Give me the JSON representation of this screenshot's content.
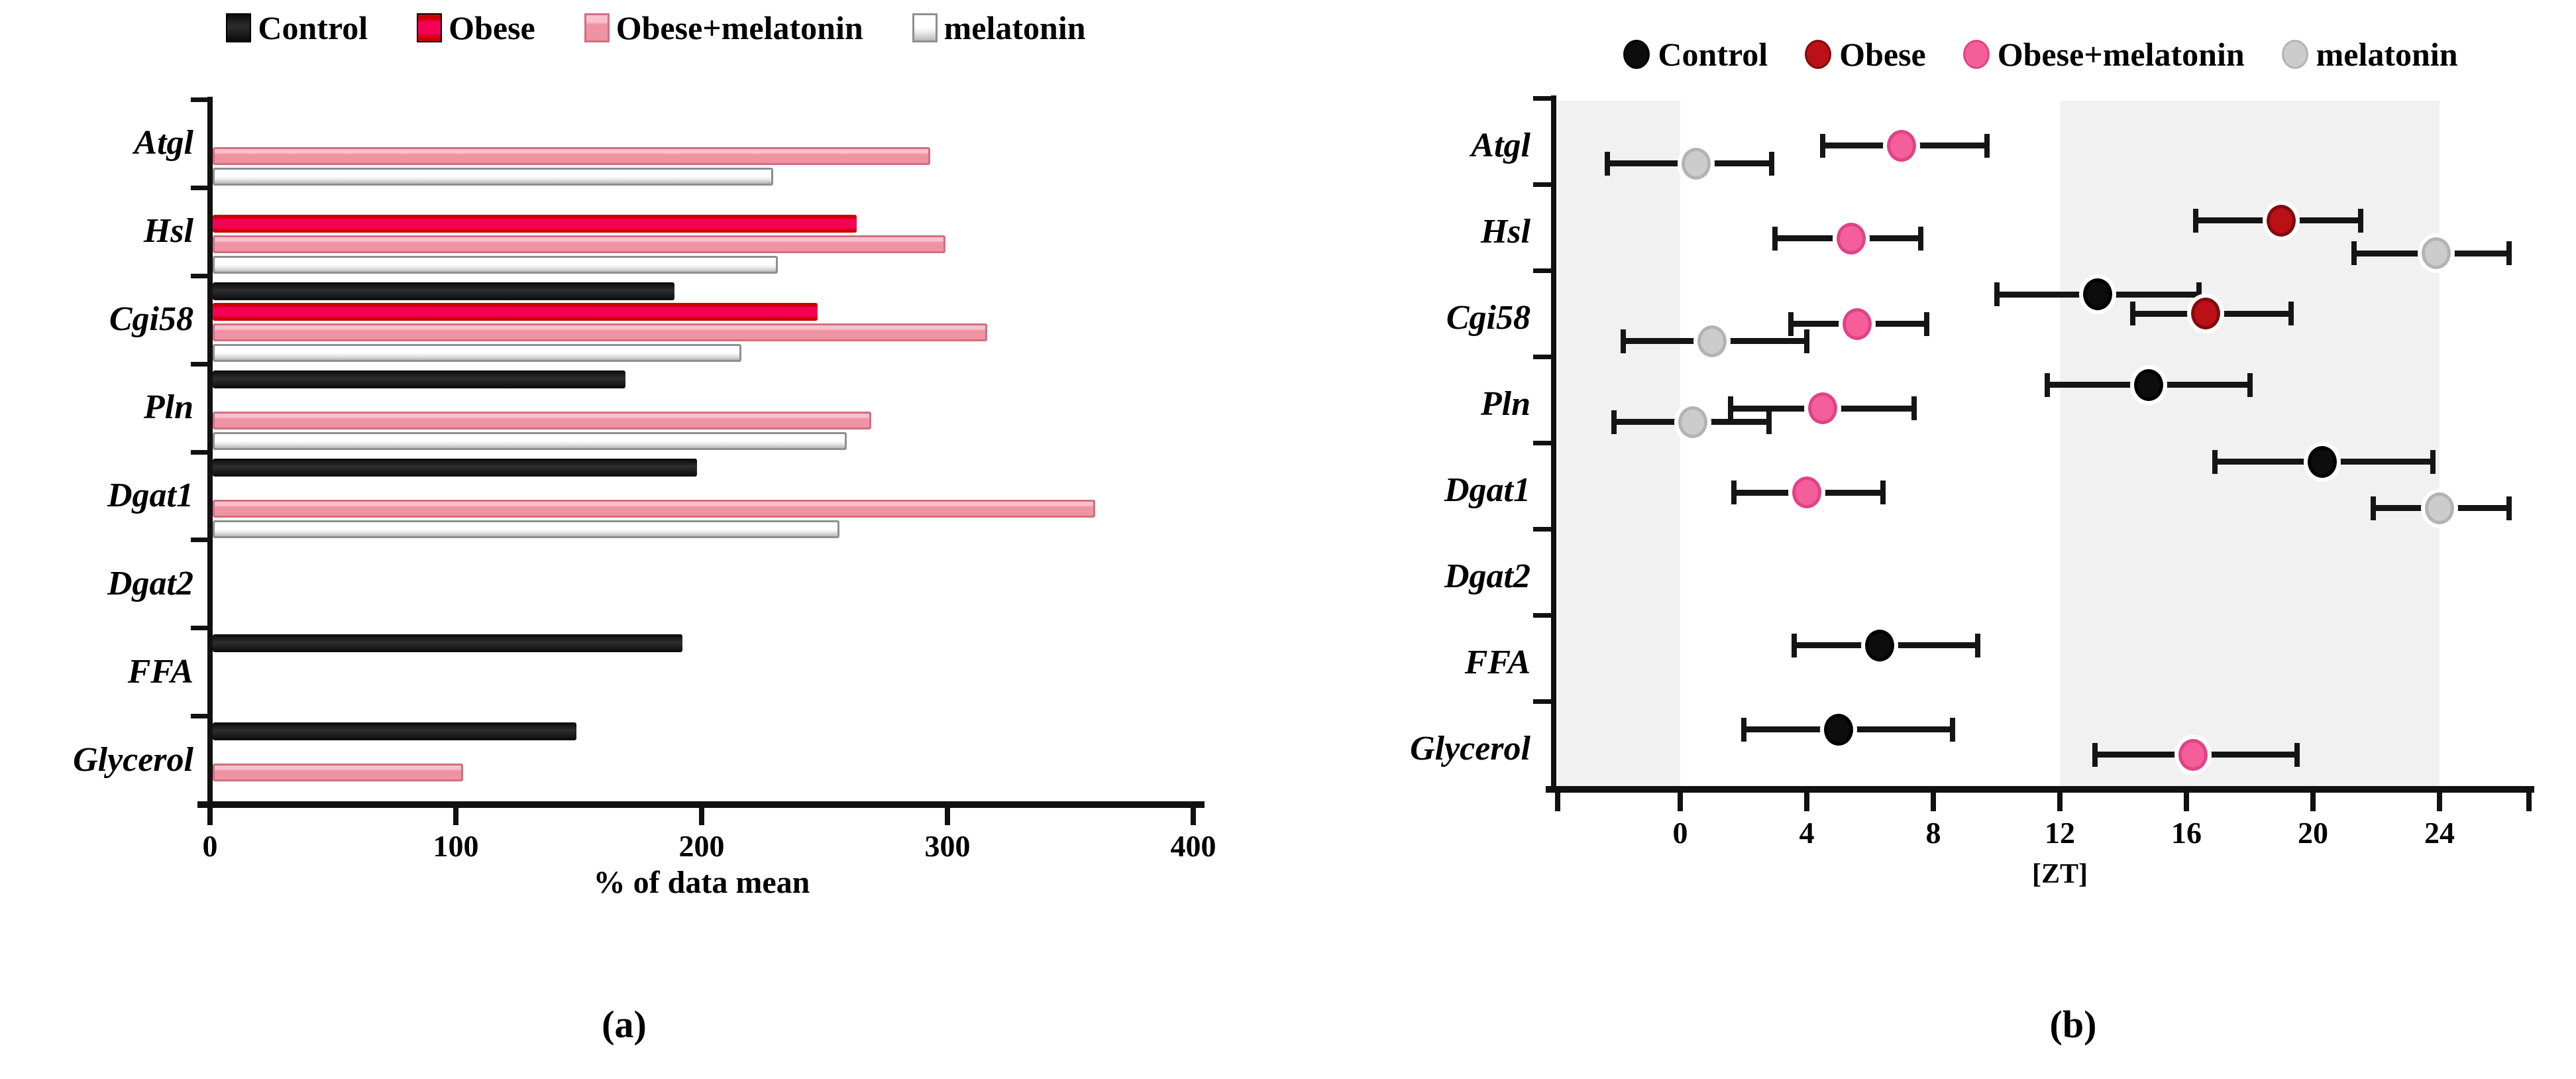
{
  "figure": {
    "panel_a_label": "(a)",
    "panel_b_label": "(b)"
  },
  "colors": {
    "axis": "#111111",
    "control_bar": "#0a0a0a",
    "control_bar_mid": "#2e2e2e",
    "obese_bar": "#f50057",
    "obese_bar_edge": "#cf0000",
    "obese_mel_bar": "#ef93a3",
    "obese_mel_bar_hi": "#f8c0ca",
    "obese_mel_bar_edge": "#cf7082",
    "melatonin_bar": "#ffffff",
    "melatonin_bar_lo": "#e9e9e9",
    "melatonin_bar_edge": "#8f8f8f",
    "dot_control": "#0d0d0d",
    "dot_control_rim": "#000000",
    "dot_obese": "#bb1015",
    "dot_obese_rim": "#820b0e",
    "dot_obese_mel": "#f55f99",
    "dot_obese_mel_rim": "#e0428a",
    "dot_melatonin": "#cccccc",
    "dot_melatonin_rim": "#b3b3b3",
    "shade_band": "#f1f1f1",
    "error_bar": "#151515",
    "text": "#000000"
  },
  "chart_data": [
    {
      "id": "a",
      "type": "bar",
      "orientation": "horizontal",
      "xlabel": "% of data mean",
      "x_ticks": [
        0,
        100,
        200,
        300,
        400
      ],
      "xlim": [
        0,
        400
      ],
      "grid": false,
      "legend_position": "top",
      "categories": [
        "Atgl",
        "Hsl",
        "Cgi58",
        "Pln",
        "Dgat1",
        "Dgat2",
        "FFA",
        "Glycerol"
      ],
      "series": [
        {
          "name": "Control",
          "color_key": "control",
          "values": [
            0,
            0,
            188,
            168,
            197,
            0,
            191,
            148
          ]
        },
        {
          "name": "Obese",
          "color_key": "obese",
          "values": [
            0,
            262,
            246,
            0,
            0,
            0,
            0,
            0
          ]
        },
        {
          "name": "Obese+melatonin",
          "color_key": "obese_melatonin",
          "values": [
            292,
            298,
            315,
            268,
            359,
            0,
            0,
            102
          ]
        },
        {
          "name": "melatonin",
          "color_key": "melatonin",
          "values": [
            228,
            230,
            215,
            258,
            255,
            0,
            0,
            0
          ]
        }
      ]
    },
    {
      "id": "b",
      "type": "scatter",
      "xlabel": "[ZT]",
      "x_ticks": [
        0,
        4,
        8,
        12,
        16,
        20,
        24
      ],
      "xlim": [
        -4,
        27
      ],
      "shaded_bands": [
        [
          -3.85,
          0
        ],
        [
          12,
          24
        ]
      ],
      "grid": false,
      "legend_position": "top",
      "categories": [
        "Atgl",
        "Hsl",
        "Cgi58",
        "Pln",
        "Dgat1",
        "Dgat2",
        "FFA",
        "Glycerol"
      ],
      "groups": [
        "Control",
        "Obese",
        "Obese+melatonin",
        "melatonin"
      ],
      "points": [
        {
          "gene": "Atgl",
          "group": "Obese+melatonin",
          "zt": 7.0,
          "lo": 4.5,
          "hi": 9.7,
          "row_frac": 0.55
        },
        {
          "gene": "Atgl",
          "group": "melatonin",
          "zt": 0.5,
          "lo": -2.3,
          "hi": 2.9,
          "row_frac": 0.76
        },
        {
          "gene": "Hsl",
          "group": "Obese",
          "zt": 19.0,
          "lo": 16.3,
          "hi": 21.5,
          "row_frac": 0.42
        },
        {
          "gene": "Hsl",
          "group": "Obese+melatonin",
          "zt": 5.4,
          "lo": 3.0,
          "hi": 7.6,
          "row_frac": 0.63
        },
        {
          "gene": "Hsl",
          "group": "melatonin",
          "zt": 23.9,
          "lo": 21.3,
          "hi": 26.2,
          "row_frac": 0.8
        },
        {
          "gene": "Cgi58",
          "group": "Control",
          "zt": 13.2,
          "lo": 10.0,
          "hi": 16.4,
          "row_frac": 0.28
        },
        {
          "gene": "Cgi58",
          "group": "Obese",
          "zt": 16.6,
          "lo": 14.3,
          "hi": 19.3,
          "row_frac": 0.5
        },
        {
          "gene": "Cgi58",
          "group": "Obese+melatonin",
          "zt": 5.6,
          "lo": 3.5,
          "hi": 7.8,
          "row_frac": 0.62
        },
        {
          "gene": "Cgi58",
          "group": "melatonin",
          "zt": 1.0,
          "lo": -1.8,
          "hi": 4.0,
          "row_frac": 0.82
        },
        {
          "gene": "Pln",
          "group": "Control",
          "zt": 14.8,
          "lo": 11.6,
          "hi": 18.0,
          "row_frac": 0.33
        },
        {
          "gene": "Pln",
          "group": "Obese+melatonin",
          "zt": 4.5,
          "lo": 1.6,
          "hi": 7.4,
          "row_frac": 0.6
        },
        {
          "gene": "Pln",
          "group": "melatonin",
          "zt": 0.4,
          "lo": -2.1,
          "hi": 2.8,
          "row_frac": 0.76
        },
        {
          "gene": "Dgat1",
          "group": "Control",
          "zt": 20.3,
          "lo": 16.9,
          "hi": 23.8,
          "row_frac": 0.22
        },
        {
          "gene": "Dgat1",
          "group": "Obese+melatonin",
          "zt": 4.0,
          "lo": 1.7,
          "hi": 6.4,
          "row_frac": 0.58
        },
        {
          "gene": "Dgat1",
          "group": "melatonin",
          "zt": 24.0,
          "lo": 21.9,
          "hi": 26.2,
          "row_frac": 0.76
        },
        {
          "gene": "FFA",
          "group": "Control",
          "zt": 6.3,
          "lo": 3.6,
          "hi": 9.4,
          "row_frac": 0.35
        },
        {
          "gene": "Glycerol",
          "group": "Control",
          "zt": 5.0,
          "lo": 2.0,
          "hi": 8.6,
          "row_frac": 0.33
        },
        {
          "gene": "Glycerol",
          "group": "Obese+melatonin",
          "zt": 16.2,
          "lo": 13.1,
          "hi": 19.5,
          "row_frac": 0.62
        }
      ]
    }
  ]
}
